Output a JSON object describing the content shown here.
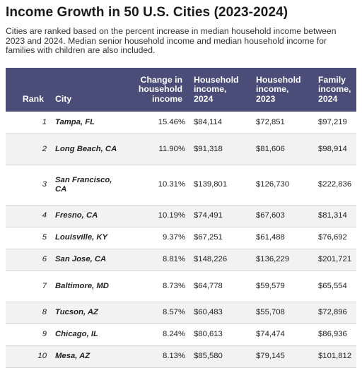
{
  "title": "Income Growth in 50 U.S. Cities (2023-2024)",
  "subtitle": "Cities are ranked based on the percent increase in median household income between 2023 and 2024. Median senior household income and median household income for families with children are also included.",
  "table": {
    "headers": {
      "rank": "Rank",
      "city": "City",
      "change": "Change in household income",
      "inc2024": "Household income, 2024",
      "inc2023": "Household income, 2023",
      "family2024": "Family income, 2024"
    },
    "rows": [
      {
        "rank": "1",
        "city": "Tampa, FL",
        "change": "15.46%",
        "inc2024": "$84,114",
        "inc2023": "$72,851",
        "family2024": "$97,219"
      },
      {
        "rank": "2",
        "city": "Long Beach, CA",
        "change": "11.90%",
        "inc2024": "$91,318",
        "inc2023": "$81,606",
        "family2024": "$98,914"
      },
      {
        "rank": "3",
        "city": "San Francisco, CA",
        "change": "10.31%",
        "inc2024": "$139,801",
        "inc2023": "$126,730",
        "family2024": "$222,836"
      },
      {
        "rank": "4",
        "city": "Fresno, CA",
        "change": "10.19%",
        "inc2024": "$74,491",
        "inc2023": "$67,603",
        "family2024": "$81,314"
      },
      {
        "rank": "5",
        "city": "Louisville, KY",
        "change": "9.37%",
        "inc2024": "$67,251",
        "inc2023": "$61,488",
        "family2024": "$76,692"
      },
      {
        "rank": "6",
        "city": "San Jose, CA",
        "change": "8.81%",
        "inc2024": "$148,226",
        "inc2023": "$136,229",
        "family2024": "$201,721"
      },
      {
        "rank": "7",
        "city": "Baltimore, MD",
        "change": "8.73%",
        "inc2024": "$64,778",
        "inc2023": "$59,579",
        "family2024": "$65,554"
      },
      {
        "rank": "8",
        "city": "Tucson, AZ",
        "change": "8.57%",
        "inc2024": "$60,483",
        "inc2023": "$55,708",
        "family2024": "$72,896"
      },
      {
        "rank": "9",
        "city": "Chicago, IL",
        "change": "8.24%",
        "inc2024": "$80,613",
        "inc2023": "$74,474",
        "family2024": "$86,936"
      },
      {
        "rank": "10",
        "city": "Mesa, AZ",
        "change": "8.13%",
        "inc2024": "$85,580",
        "inc2023": "$79,145",
        "family2024": "$101,812"
      }
    ]
  },
  "colors": {
    "header_bg": "#4a4d77",
    "row_shade": "#f2f2f2",
    "row_border": "#d4d4d4"
  }
}
